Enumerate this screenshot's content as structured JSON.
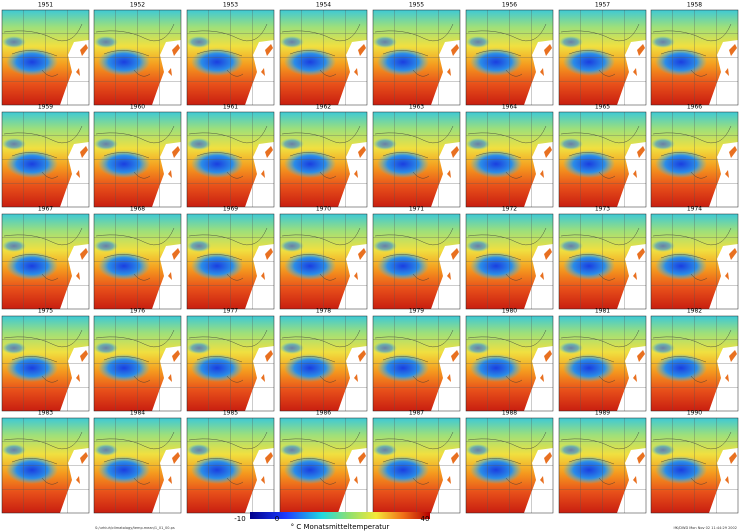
{
  "years": [
    "1951",
    "1952",
    "1953",
    "1954",
    "1955",
    "1956",
    "1957",
    "1958",
    "1959",
    "1960",
    "1961",
    "1962",
    "1963",
    "1964",
    "1965",
    "1966",
    "1967",
    "1968",
    "1969",
    "1970",
    "1971",
    "1972",
    "1973",
    "1974",
    "1975",
    "1976",
    "1977",
    "1978",
    "1979",
    "1980",
    "1981",
    "1982",
    "1983",
    "1984",
    "1985",
    "1986",
    "1987",
    "1988",
    "1989",
    "1990"
  ],
  "colorbar": {
    "ticks": [
      -10,
      0,
      40
    ],
    "label": "° C  Monatsmitteltemperatur"
  },
  "footer": {
    "left": "S:/urhiuh/climatology/temp.mean/1_01_00.ps",
    "right": "IfK/DWD  Mon Nov 02  11:44:29 2002"
  }
}
